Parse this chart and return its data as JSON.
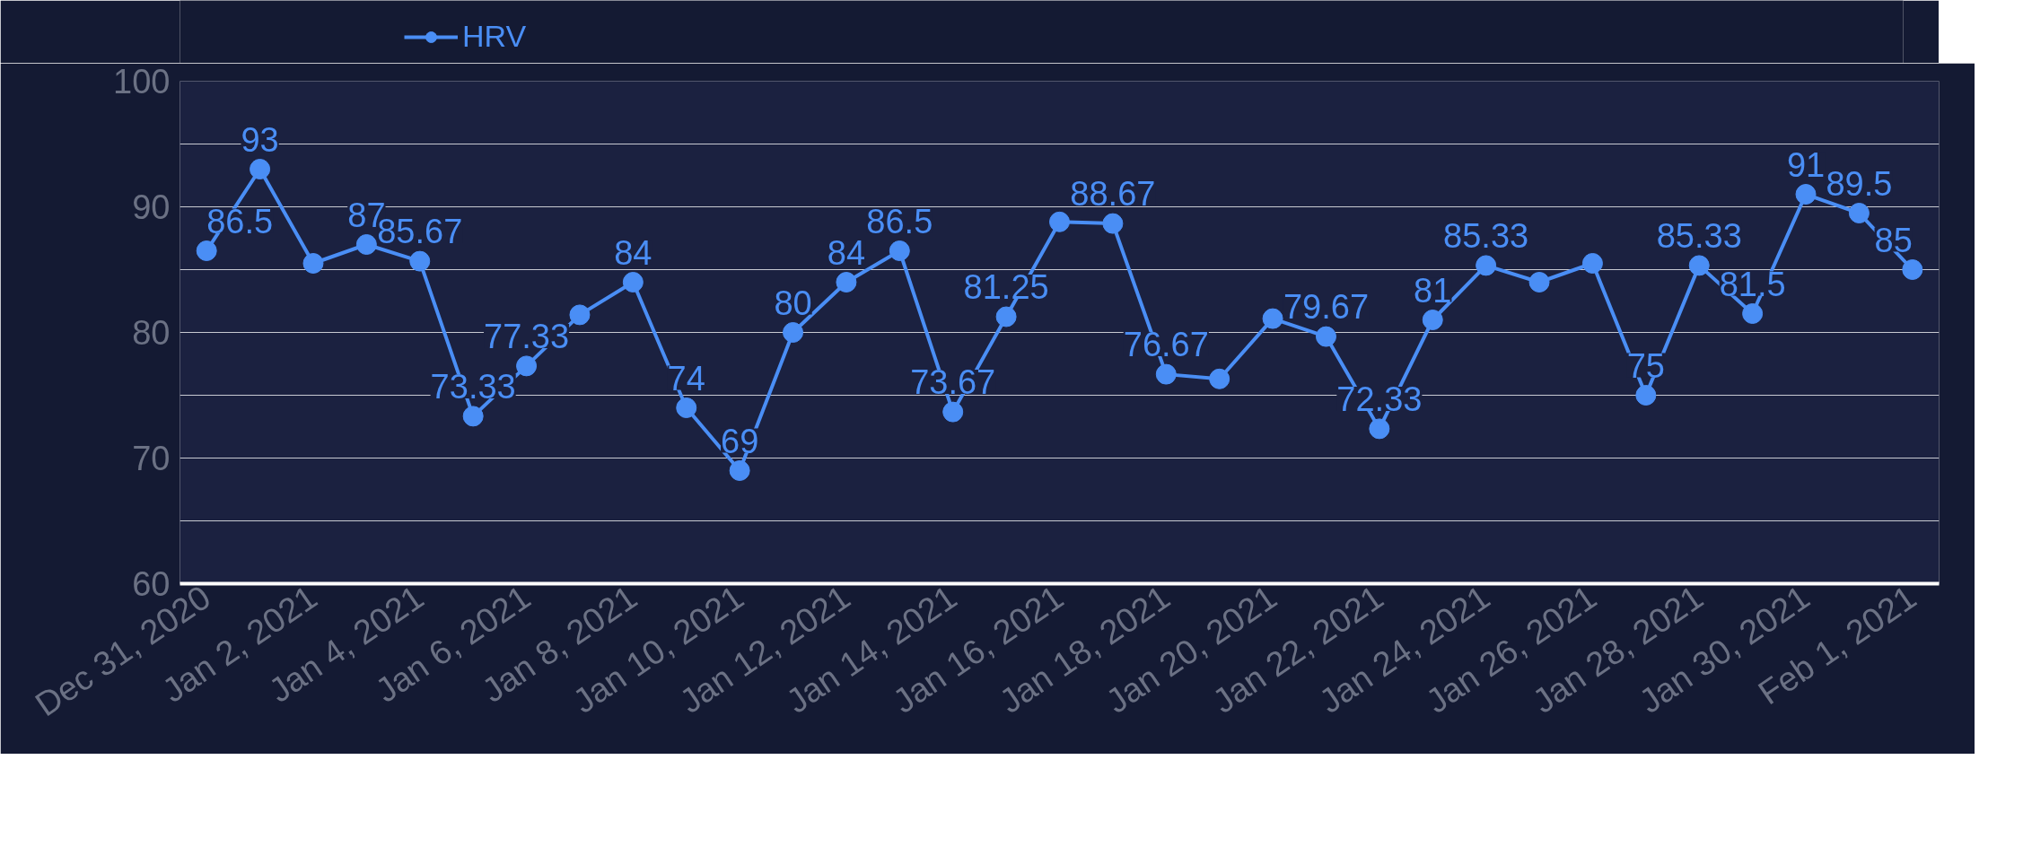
{
  "chart_data": {
    "type": "line",
    "x": [
      "2020-12-31",
      "2021-01-01",
      "2021-01-02",
      "2021-01-03",
      "2021-01-04",
      "2021-01-05",
      "2021-01-06",
      "2021-01-07",
      "2021-01-08",
      "2021-01-09",
      "2021-01-10",
      "2021-01-11",
      "2021-01-12",
      "2021-01-13",
      "2021-01-14",
      "2021-01-15",
      "2021-01-16",
      "2021-01-17",
      "2021-01-18",
      "2021-01-19",
      "2021-01-20",
      "2021-01-21",
      "2021-01-22",
      "2021-01-23",
      "2021-01-24",
      "2021-01-25",
      "2021-01-26",
      "2021-01-27",
      "2021-01-28",
      "2021-01-29",
      "2021-01-30",
      "2021-01-31",
      "2021-02-01"
    ],
    "series": [
      {
        "name": "HRV",
        "color": "#4a8ef5",
        "values": [
          86.5,
          93,
          85.5,
          87,
          85.67,
          73.33,
          77.33,
          81.4,
          84,
          74,
          69,
          80,
          84,
          86.5,
          73.67,
          81.25,
          88.8,
          88.67,
          76.67,
          76.3,
          81.1,
          79.67,
          72.33,
          81,
          85.33,
          84,
          85.5,
          75,
          85.33,
          81.5,
          91,
          89.5,
          85
        ],
        "value_labels": [
          "86.5",
          "93",
          null,
          "87",
          "85.67",
          "73.33",
          "77.33",
          null,
          "84",
          "74",
          "69",
          "80",
          "84",
          "86.5",
          "73.67",
          "81.25",
          null,
          "88.67",
          "76.67",
          null,
          null,
          "79.67",
          "72.33",
          "81",
          "85.33",
          null,
          null,
          "75",
          "85.33",
          "81.5",
          "91",
          "89.5",
          "85"
        ]
      }
    ],
    "xlim": [
      "2020-12-30T12:00",
      "2021-02-01T12:00"
    ],
    "xticks": [
      {
        "value": "2020-12-31",
        "label": "Dec 31, 2020"
      },
      {
        "value": "2021-01-02",
        "label": "Jan 2, 2021"
      },
      {
        "value": "2021-01-04",
        "label": "Jan 4, 2021"
      },
      {
        "value": "2021-01-06",
        "label": "Jan 6, 2021"
      },
      {
        "value": "2021-01-08",
        "label": "Jan 8, 2021"
      },
      {
        "value": "2021-01-10",
        "label": "Jan 10, 2021"
      },
      {
        "value": "2021-01-12",
        "label": "Jan 12, 2021"
      },
      {
        "value": "2021-01-14",
        "label": "Jan 14, 2021"
      },
      {
        "value": "2021-01-16",
        "label": "Jan 16, 2021"
      },
      {
        "value": "2021-01-18",
        "label": "Jan 18, 2021"
      },
      {
        "value": "2021-01-20",
        "label": "Jan 20, 2021"
      },
      {
        "value": "2021-01-22",
        "label": "Jan 22, 2021"
      },
      {
        "value": "2021-01-24",
        "label": "Jan 24, 2021"
      },
      {
        "value": "2021-01-26",
        "label": "Jan 26, 2021"
      },
      {
        "value": "2021-01-28",
        "label": "Jan 28, 2021"
      },
      {
        "value": "2021-01-30",
        "label": "Jan 30, 2021"
      },
      {
        "value": "2021-02-01",
        "label": "Feb 1, 2021"
      }
    ],
    "ylim": [
      60,
      100
    ],
    "yticks": [
      60,
      {
        "value": 65,
        "label": null
      },
      70,
      {
        "value": 75,
        "label": null
      },
      80,
      {
        "value": 85,
        "label": null
      },
      90,
      {
        "value": 95,
        "label": null
      },
      100
    ],
    "grid": "y",
    "legend": "top left",
    "marker": "circle",
    "line_style": "solid"
  }
}
